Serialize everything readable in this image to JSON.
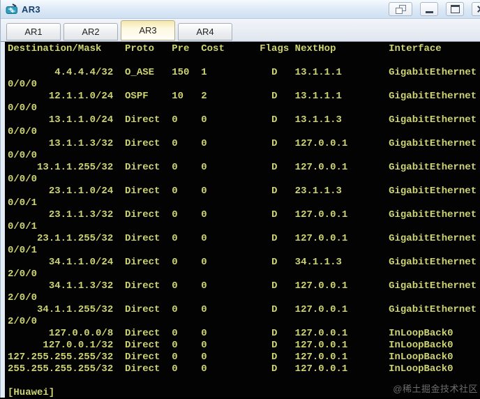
{
  "window": {
    "title": "AR3",
    "controls": [
      {
        "name": "float-window",
        "icon": "cascade-windows-icon"
      },
      {
        "name": "minimize",
        "icon": "minimize-icon"
      },
      {
        "name": "maximize",
        "icon": "maximize-icon"
      },
      {
        "name": "close",
        "icon": "close-icon"
      }
    ]
  },
  "tabs": [
    {
      "label": "AR1",
      "active": false
    },
    {
      "label": "AR2",
      "active": false
    },
    {
      "label": "AR3",
      "active": true
    },
    {
      "label": "AR4",
      "active": false
    }
  ],
  "terminal": {
    "colors": {
      "background": "#030303",
      "text": "#ced472"
    },
    "header": "Destination/Mask    Proto   Pre  Cost      Flags NextHop         Interface",
    "columns": [
      "Destination/Mask",
      "Proto",
      "Pre",
      "Cost",
      "Flags",
      "NextHop",
      "Interface"
    ],
    "routes": [
      {
        "dest": "4.4.4.4/32",
        "proto": "O_ASE",
        "pre": "150",
        "cost": "1",
        "flags": "D",
        "nexthop": "13.1.1.1",
        "iface": "GigabitEthernet0/0/0"
      },
      {
        "dest": "12.1.1.0/24",
        "proto": "OSPF",
        "pre": "10",
        "cost": "2",
        "flags": "D",
        "nexthop": "13.1.1.1",
        "iface": "GigabitEthernet0/0/0"
      },
      {
        "dest": "13.1.1.0/24",
        "proto": "Direct",
        "pre": "0",
        "cost": "0",
        "flags": "D",
        "nexthop": "13.1.1.3",
        "iface": "GigabitEthernet0/0/0"
      },
      {
        "dest": "13.1.1.3/32",
        "proto": "Direct",
        "pre": "0",
        "cost": "0",
        "flags": "D",
        "nexthop": "127.0.0.1",
        "iface": "GigabitEthernet0/0/0"
      },
      {
        "dest": "13.1.1.255/32",
        "proto": "Direct",
        "pre": "0",
        "cost": "0",
        "flags": "D",
        "nexthop": "127.0.0.1",
        "iface": "GigabitEthernet0/0/0"
      },
      {
        "dest": "23.1.1.0/24",
        "proto": "Direct",
        "pre": "0",
        "cost": "0",
        "flags": "D",
        "nexthop": "23.1.1.3",
        "iface": "GigabitEthernet0/0/1"
      },
      {
        "dest": "23.1.1.3/32",
        "proto": "Direct",
        "pre": "0",
        "cost": "0",
        "flags": "D",
        "nexthop": "127.0.0.1",
        "iface": "GigabitEthernet0/0/1"
      },
      {
        "dest": "23.1.1.255/32",
        "proto": "Direct",
        "pre": "0",
        "cost": "0",
        "flags": "D",
        "nexthop": "127.0.0.1",
        "iface": "GigabitEthernet0/0/1"
      },
      {
        "dest": "34.1.1.0/24",
        "proto": "Direct",
        "pre": "0",
        "cost": "0",
        "flags": "D",
        "nexthop": "34.1.1.3",
        "iface": "GigabitEthernet2/0/0"
      },
      {
        "dest": "34.1.1.3/32",
        "proto": "Direct",
        "pre": "0",
        "cost": "0",
        "flags": "D",
        "nexthop": "127.0.0.1",
        "iface": "GigabitEthernet2/0/0"
      },
      {
        "dest": "34.1.1.255/32",
        "proto": "Direct",
        "pre": "0",
        "cost": "0",
        "flags": "D",
        "nexthop": "127.0.0.1",
        "iface": "GigabitEthernet2/0/0"
      },
      {
        "dest": "127.0.0.0/8",
        "proto": "Direct",
        "pre": "0",
        "cost": "0",
        "flags": "D",
        "nexthop": "127.0.0.1",
        "iface": "InLoopBack0"
      },
      {
        "dest": "127.0.0.1/32",
        "proto": "Direct",
        "pre": "0",
        "cost": "0",
        "flags": "D",
        "nexthop": "127.0.0.1",
        "iface": "InLoopBack0"
      },
      {
        "dest": "127.255.255.255/32",
        "proto": "Direct",
        "pre": "0",
        "cost": "0",
        "flags": "D",
        "nexthop": "127.0.0.1",
        "iface": "InLoopBack0"
      },
      {
        "dest": "255.255.255.255/32",
        "proto": "Direct",
        "pre": "0",
        "cost": "0",
        "flags": "D",
        "nexthop": "127.0.0.1",
        "iface": "InLoopBack0"
      }
    ],
    "prompt": "[Huawei]"
  },
  "watermark": "@稀土掘金技术社区"
}
